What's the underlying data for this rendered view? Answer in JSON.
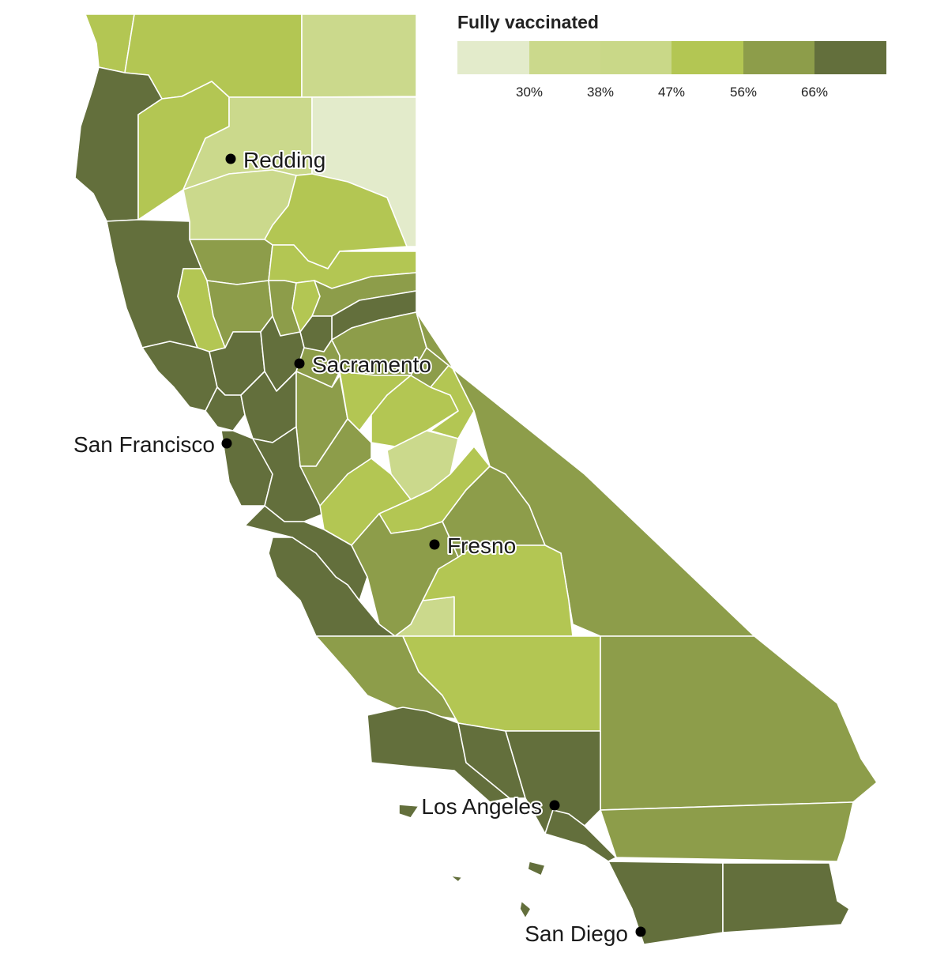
{
  "legend": {
    "title": "Fully vaccinated",
    "colors": [
      "#e3ebcb",
      "#cbd98c",
      "#c9d888",
      "#b3c653",
      "#8d9d4a",
      "#636f3c"
    ],
    "ticks": [
      "30%",
      "38%",
      "47%",
      "56%",
      "66%"
    ]
  },
  "palette": {
    "c1": "#e3ebcb",
    "c2": "#cbd98c",
    "c3": "#b3c653",
    "c4": "#8d9d4a",
    "c5": "#636f3c"
  },
  "cities": [
    {
      "name": "Redding"
    },
    {
      "name": "Sacramento"
    },
    {
      "name": "San Francisco"
    },
    {
      "name": "Fresno"
    },
    {
      "name": "Los Angeles"
    },
    {
      "name": "San Diego"
    }
  ]
}
